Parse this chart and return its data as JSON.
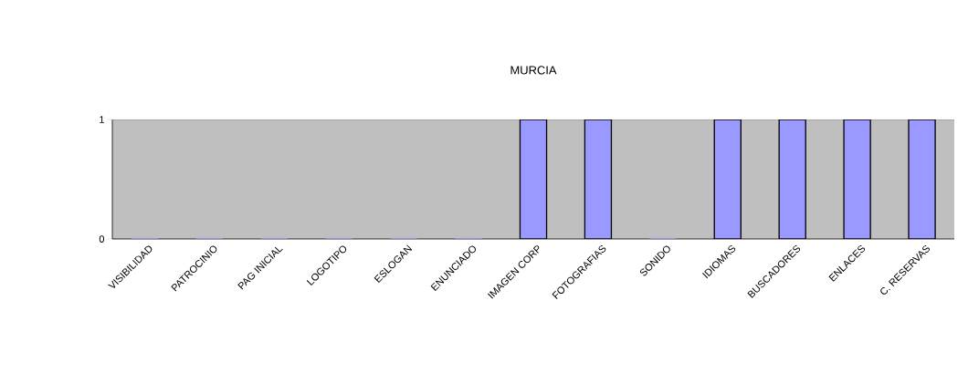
{
  "chart_data": {
    "type": "bar",
    "title": "MURCIA",
    "categories": [
      "VISIBILIDAD",
      "PATROCINIO",
      "PAG INICIAL",
      "LOGOTIPO",
      "ESLOGAN",
      "ENUNCIADO",
      "IMAGEN CORP",
      "FOTOGRAFIAS",
      "SONIDO",
      "IDIOMAS",
      "BUSCADORES",
      "ENLACES",
      "C. RESERVAS"
    ],
    "values": [
      0,
      0,
      0,
      0,
      0,
      0,
      1,
      1,
      0,
      1,
      1,
      1,
      1
    ],
    "color": "#9999ff",
    "ylim": [
      0,
      1
    ],
    "yticks": [
      0,
      1
    ],
    "grid": false
  }
}
